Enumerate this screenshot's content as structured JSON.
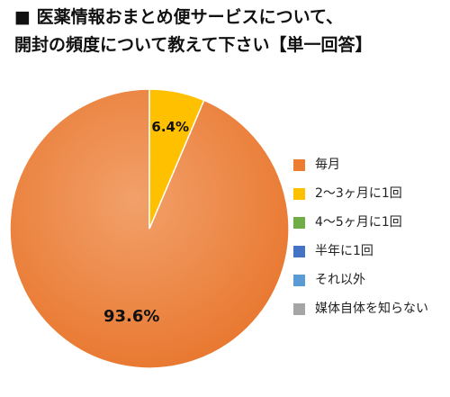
{
  "chart_data": {
    "type": "pie",
    "title_lines": [
      "■ 医薬情報おまとめ便サービスについて、",
      "開封の頻度について教えて下さい【単一回答】"
    ],
    "series": [
      {
        "label": "毎月",
        "value": 93.6,
        "value_label": "93.6%",
        "color": "#ED7D31"
      },
      {
        "label": "2～3ヶ月に1回",
        "value": 6.4,
        "value_label": "6.4%",
        "color": "#FFC000"
      },
      {
        "label": "4～5ヶ月に1回",
        "value": 0,
        "value_label": "",
        "color": "#70AD47"
      },
      {
        "label": "半年に1回",
        "value": 0,
        "value_label": "",
        "color": "#4472C4"
      },
      {
        "label": "それ以外",
        "value": 0,
        "value_label": "",
        "color": "#5B9BD5"
      },
      {
        "label": "媒体自体を知らない",
        "value": 0,
        "value_label": "",
        "color": "#A5A5A5"
      }
    ],
    "legend_position": "right"
  }
}
